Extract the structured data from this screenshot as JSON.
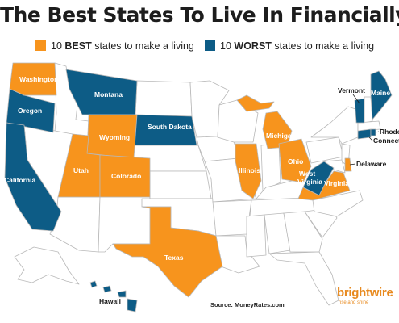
{
  "title": "The Best States To Live In Financially",
  "legend": {
    "best": {
      "label_prefix": "10 ",
      "label_bold": "BEST",
      "label_suffix": " states to make a living",
      "color": "#f7941d"
    },
    "worst": {
      "label_prefix": "10 ",
      "label_bold": "WORST",
      "label_suffix": " states to make a living",
      "color": "#0d5c86"
    }
  },
  "colors": {
    "neutral": "#ffffff",
    "border": "#b8b8b8",
    "land_stroke": "#9a9a9a"
  },
  "states": {
    "washington": "Washington",
    "oregon": "Oregon",
    "california": "California",
    "montana": "Montana",
    "wyoming": "Wyoming",
    "south_dakota": "South Dakota",
    "utah": "Utah",
    "colorado": "Colorado",
    "texas": "Texas",
    "illinois": "Illinois",
    "michigan": "Michigan",
    "ohio": "Ohio",
    "west_virginia": "West Virginia",
    "virginia": "Virginia",
    "delaware": "Delaware",
    "vermont": "Vermont",
    "maine": "Maine",
    "rhode": "Rhode",
    "connecticut": "Connecticut",
    "hawaii": "Hawaii"
  },
  "source": "Source: MoneyRates.com",
  "brand": "brightwire",
  "tagline": "rise and shine"
}
